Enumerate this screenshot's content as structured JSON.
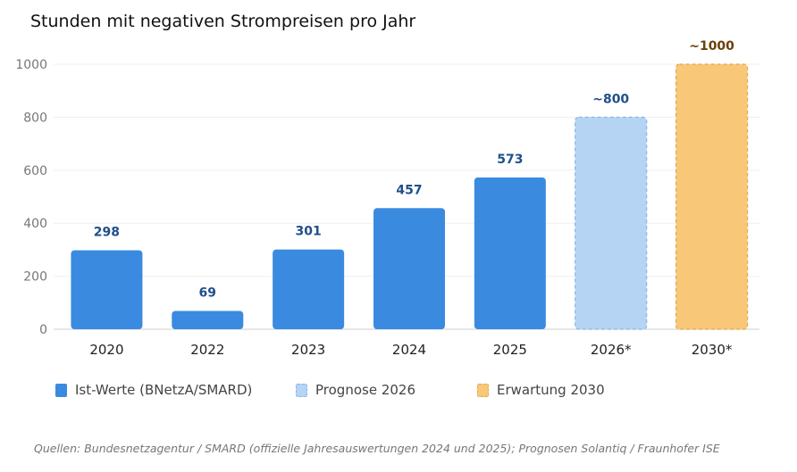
{
  "chart_data": {
    "type": "bar",
    "title": "Stunden mit negativen Strompreisen pro Jahr",
    "categories": [
      "2020",
      "2022",
      "2023",
      "2024",
      "2025",
      "2026*",
      "2030*"
    ],
    "values": [
      298,
      69,
      301,
      457,
      573,
      800,
      1000
    ],
    "data_labels": [
      "298",
      "69",
      "301",
      "457",
      "573",
      "~800",
      "~1000"
    ],
    "series_type": [
      "actual",
      "actual",
      "actual",
      "actual",
      "actual",
      "forecast",
      "expectation"
    ],
    "ylim": [
      0,
      1000
    ],
    "yticks": [
      0,
      200,
      400,
      600,
      800,
      1000
    ],
    "grid": true,
    "legend_placement": "bottom",
    "legend": [
      {
        "label": "Ist-Werte (BNetzA/SMARD)",
        "key": "actual"
      },
      {
        "label": "Prognose 2026",
        "key": "forecast"
      },
      {
        "label": "Erwartung 2030",
        "key": "expectation"
      }
    ],
    "colors": {
      "actual": {
        "fill": "#3a8be0",
        "stroke": "none",
        "label": "#1f4f8a"
      },
      "forecast": {
        "fill": "#b5d4f4",
        "stroke": "#85b6ec",
        "label": "#1f4f8a"
      },
      "expectation": {
        "fill": "#f8c878",
        "stroke": "#e0a852",
        "label": "#6b3f0a"
      }
    }
  },
  "source": "Quellen: Bundesnetzagentur / SMARD (offizielle Jahresauswertungen 2024 und 2025); Prognosen Solantiq / Fraunhofer ISE"
}
